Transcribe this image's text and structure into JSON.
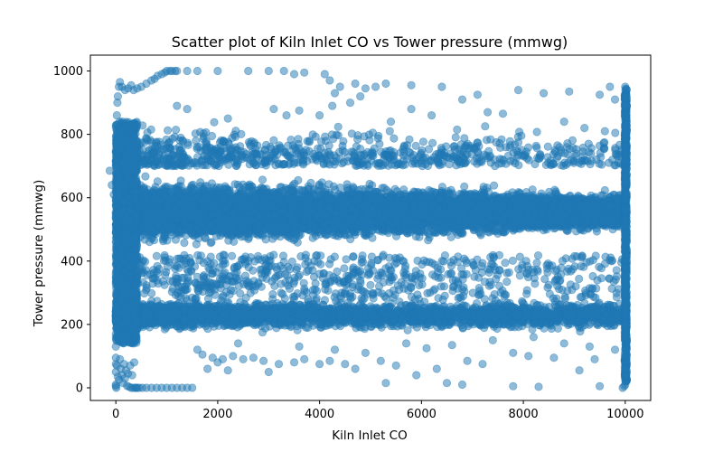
{
  "chart_data": {
    "type": "scatter",
    "title": "Scatter plot of Kiln Inlet CO vs Tower pressure (mmwg)",
    "xlabel": "Kiln Inlet CO",
    "ylabel": "Tower pressure (mmwg)",
    "xlim": [
      -500,
      10500
    ],
    "ylim": [
      -40,
      1050
    ],
    "xticks": [
      0,
      2000,
      4000,
      6000,
      8000,
      10000
    ],
    "yticks": [
      0,
      200,
      400,
      600,
      800,
      1000
    ],
    "xtick_labels": [
      "0",
      "2000",
      "4000",
      "6000",
      "8000",
      "10000"
    ],
    "ytick_labels": [
      "0",
      "200",
      "400",
      "600",
      "800",
      "1000"
    ],
    "grid": false,
    "legend": "none",
    "marker_color": "#1f77b4",
    "marker_alpha": 0.5,
    "dense_regions": [
      {
        "x": [
          0,
          10000
        ],
        "y": [
          420,
          700
        ],
        "description": "main band"
      },
      {
        "x": [
          0,
          10000
        ],
        "y": [
          170,
          300
        ],
        "description": "lower band"
      },
      {
        "x": [
          0,
          400
        ],
        "y": [
          0,
          1000
        ],
        "description": "left vertical cluster"
      },
      {
        "x": [
          9900,
          10050
        ],
        "y": [
          0,
          960
        ],
        "description": "right vertical cluster"
      }
    ],
    "points": [
      [
        -120,
        685
      ],
      [
        -80,
        640
      ],
      [
        -40,
        610
      ],
      [
        0,
        590
      ],
      [
        0,
        540
      ],
      [
        0,
        490
      ],
      [
        0,
        460
      ],
      [
        0,
        420
      ],
      [
        0,
        360
      ],
      [
        0,
        330
      ],
      [
        0,
        240
      ],
      [
        0,
        210
      ],
      [
        0,
        170
      ],
      [
        0,
        130
      ],
      [
        0,
        95
      ],
      [
        0,
        75
      ],
      [
        0,
        50
      ],
      [
        0,
        10
      ],
      [
        0,
        5
      ],
      [
        10,
        0
      ],
      [
        20,
        70
      ],
      [
        40,
        35
      ],
      [
        60,
        25
      ],
      [
        80,
        90
      ],
      [
        100,
        60
      ],
      [
        120,
        40
      ],
      [
        140,
        15
      ],
      [
        160,
        75
      ],
      [
        180,
        30
      ],
      [
        200,
        55
      ],
      [
        220,
        6
      ],
      [
        240,
        45
      ],
      [
        260,
        3
      ],
      [
        280,
        70
      ],
      [
        300,
        0
      ],
      [
        320,
        40
      ],
      [
        340,
        0
      ],
      [
        360,
        80
      ],
      [
        380,
        0
      ],
      [
        400,
        0
      ],
      [
        420,
        0
      ],
      [
        460,
        0
      ],
      [
        520,
        0
      ],
      [
        600,
        0
      ],
      [
        700,
        0
      ],
      [
        800,
        0
      ],
      [
        900,
        0
      ],
      [
        1000,
        0
      ],
      [
        1100,
        0
      ],
      [
        1200,
        0
      ],
      [
        1300,
        0
      ],
      [
        1400,
        0
      ],
      [
        1500,
        0
      ],
      [
        20,
        860
      ],
      [
        30,
        900
      ],
      [
        40,
        920
      ],
      [
        60,
        950
      ],
      [
        80,
        965
      ],
      [
        120,
        950
      ],
      [
        180,
        940
      ],
      [
        240,
        945
      ],
      [
        300,
        955
      ],
      [
        350,
        940
      ],
      [
        420,
        945
      ],
      [
        500,
        950
      ],
      [
        600,
        960
      ],
      [
        700,
        970
      ],
      [
        760,
        975
      ],
      [
        820,
        985
      ],
      [
        900,
        990
      ],
      [
        960,
        995
      ],
      [
        1000,
        1000
      ],
      [
        1060,
        1000
      ],
      [
        1100,
        1000
      ],
      [
        1160,
        1000
      ],
      [
        1200,
        1000
      ],
      [
        1400,
        1000
      ],
      [
        1600,
        1000
      ],
      [
        2000,
        1000
      ],
      [
        2600,
        1000
      ],
      [
        3000,
        1000
      ],
      [
        3300,
        1000
      ],
      [
        3500,
        990
      ],
      [
        3700,
        995
      ],
      [
        4100,
        990
      ],
      [
        4200,
        970
      ],
      [
        4400,
        950
      ],
      [
        4300,
        930
      ],
      [
        4700,
        960
      ],
      [
        4900,
        945
      ],
      [
        5100,
        950
      ],
      [
        5300,
        960
      ],
      [
        5800,
        955
      ],
      [
        6400,
        950
      ],
      [
        7100,
        925
      ],
      [
        7900,
        940
      ],
      [
        8400,
        930
      ],
      [
        8900,
        935
      ],
      [
        9500,
        925
      ],
      [
        9700,
        950
      ],
      [
        9800,
        910
      ],
      [
        4600,
        900
      ],
      [
        4800,
        920
      ],
      [
        4250,
        890
      ],
      [
        5800,
        880
      ],
      [
        6200,
        860
      ],
      [
        6800,
        910
      ],
      [
        7300,
        870
      ],
      [
        7600,
        865
      ],
      [
        8800,
        840
      ],
      [
        1200,
        890
      ],
      [
        1400,
        880
      ],
      [
        2200,
        850
      ],
      [
        3100,
        880
      ],
      [
        3350,
        860
      ],
      [
        3600,
        875
      ],
      [
        4000,
        860
      ],
      [
        5400,
        840
      ],
      [
        6700,
        815
      ],
      [
        9200,
        820
      ],
      [
        9600,
        810
      ],
      [
        1700,
        105
      ],
      [
        1900,
        95
      ],
      [
        2000,
        80
      ],
      [
        2100,
        90
      ],
      [
        2300,
        100
      ],
      [
        2500,
        90
      ],
      [
        2700,
        95
      ],
      [
        2900,
        85
      ],
      [
        3200,
        75
      ],
      [
        3500,
        80
      ],
      [
        3700,
        90
      ],
      [
        4000,
        75
      ],
      [
        4200,
        85
      ],
      [
        4500,
        75
      ],
      [
        4700,
        60
      ],
      [
        5200,
        85
      ],
      [
        5500,
        70
      ],
      [
        6300,
        60
      ],
      [
        6900,
        85
      ],
      [
        7200,
        75
      ],
      [
        7800,
        110
      ],
      [
        8100,
        100
      ],
      [
        8600,
        95
      ],
      [
        9100,
        55
      ],
      [
        9400,
        90
      ],
      [
        1800,
        60
      ],
      [
        2200,
        55
      ],
      [
        3000,
        50
      ],
      [
        5300,
        15
      ],
      [
        5900,
        40
      ],
      [
        6500,
        15
      ],
      [
        6800,
        10
      ],
      [
        7800,
        5
      ],
      [
        8300,
        3
      ],
      [
        9500,
        5
      ],
      [
        1600,
        120
      ],
      [
        2400,
        140
      ],
      [
        3600,
        130
      ],
      [
        4300,
        120
      ],
      [
        4900,
        110
      ],
      [
        5700,
        140
      ],
      [
        6100,
        125
      ],
      [
        6600,
        135
      ],
      [
        7400,
        150
      ],
      [
        8200,
        160
      ],
      [
        8800,
        140
      ],
      [
        9300,
        130
      ],
      [
        9800,
        120
      ],
      [
        10000,
        950
      ],
      [
        10000,
        920
      ],
      [
        10000,
        890
      ],
      [
        10000,
        860
      ],
      [
        10000,
        830
      ],
      [
        10000,
        800
      ],
      [
        10000,
        760
      ],
      [
        10000,
        720
      ],
      [
        10000,
        690
      ],
      [
        10000,
        650
      ],
      [
        10000,
        380
      ],
      [
        10000,
        350
      ],
      [
        10000,
        310
      ],
      [
        10000,
        270
      ],
      [
        10000,
        240
      ],
      [
        10000,
        200
      ],
      [
        10000,
        160
      ],
      [
        10000,
        120
      ],
      [
        10000,
        90
      ],
      [
        10000,
        60
      ],
      [
        10000,
        35
      ],
      [
        10000,
        10
      ],
      [
        9950,
        0
      ],
      [
        9980,
        5
      ],
      [
        10010,
        20
      ],
      [
        10020,
        80
      ],
      [
        9990,
        100
      ],
      [
        10030,
        150
      ]
    ]
  }
}
